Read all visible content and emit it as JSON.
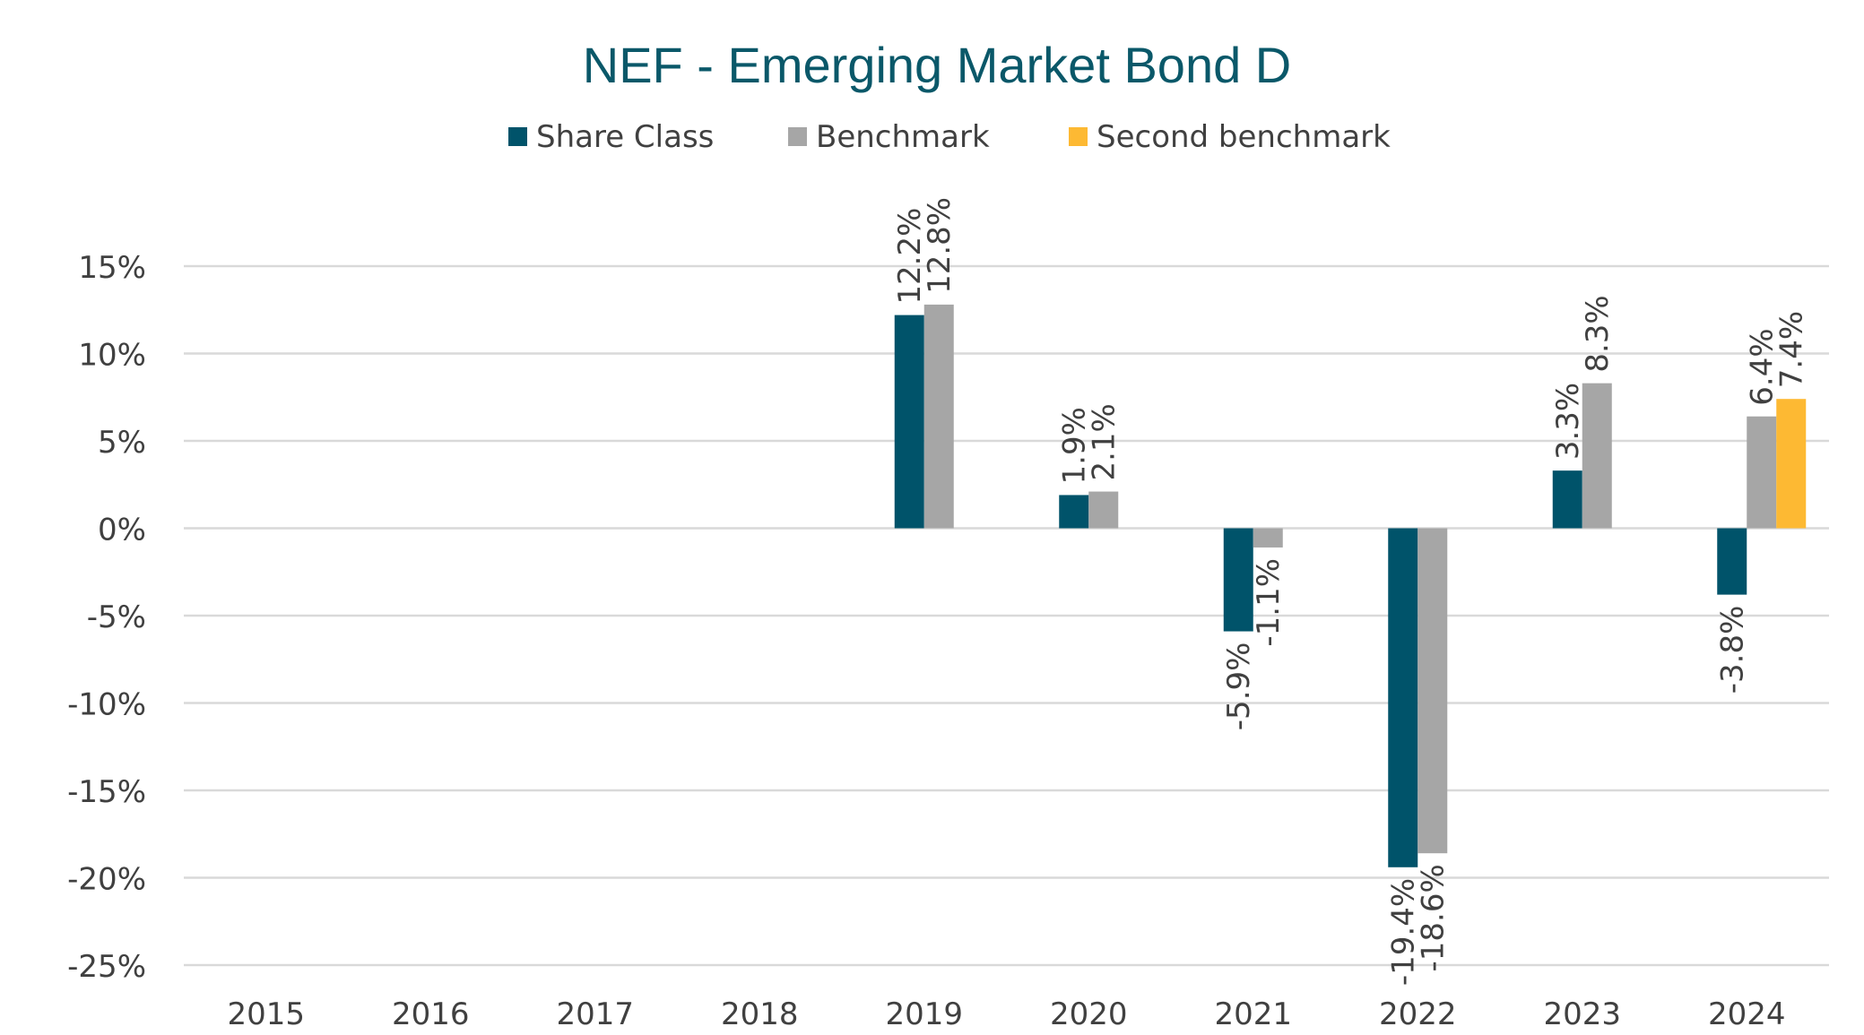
{
  "chart_data": {
    "type": "bar",
    "title": "NEF - Emerging Market Bond D",
    "xlabel": "",
    "ylabel": "",
    "categories": [
      "2015",
      "2016",
      "2017",
      "2018",
      "2019",
      "2020",
      "2021",
      "2022",
      "2023",
      "2024"
    ],
    "series": [
      {
        "name": "Share Class",
        "color": "#00536A",
        "values": [
          null,
          null,
          null,
          null,
          12.2,
          1.9,
          -5.9,
          -19.4,
          3.3,
          -3.8
        ]
      },
      {
        "name": "Benchmark",
        "color": "#A6A6A6",
        "values": [
          null,
          null,
          null,
          null,
          12.8,
          2.1,
          -1.1,
          -18.6,
          8.3,
          6.4
        ]
      },
      {
        "name": "Second benchmark",
        "color": "#FDB933",
        "values": [
          null,
          null,
          null,
          null,
          null,
          null,
          null,
          null,
          null,
          7.4
        ]
      }
    ],
    "ylim": [
      -25,
      15
    ],
    "yticks": [
      15,
      10,
      5,
      0,
      -5,
      -10,
      -15,
      -20,
      -25
    ],
    "ytick_labels": [
      "15%",
      "10%",
      "5%",
      "0%",
      "-5%",
      "-10%",
      "-15%",
      "-20%",
      "-25%"
    ],
    "data_label_format": "1 decimal + %",
    "grid": true,
    "legend_position": "top",
    "colors": {
      "title": "#0A5869",
      "text": "#404040",
      "grid": "#D9D9D9"
    }
  }
}
